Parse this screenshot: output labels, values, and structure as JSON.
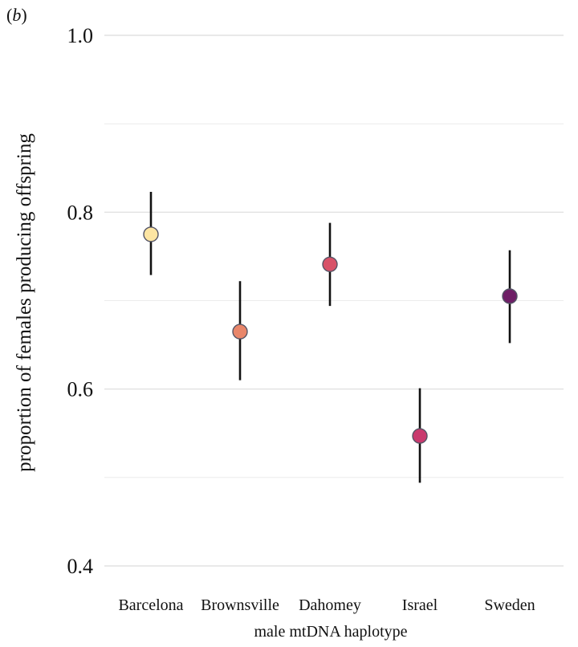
{
  "panel_label": "b",
  "chart_data": {
    "type": "scatter",
    "title": "",
    "xlabel": "male mtDNA haplotype",
    "ylabel": "proportion of females producing offspring",
    "ylim": [
      0.4,
      1.0
    ],
    "y_ticks": [
      "0.4",
      "0.6",
      "0.8",
      "1.0"
    ],
    "grid": true,
    "error_bars": true,
    "categories": [
      "Barcelona",
      "Brownsville",
      "Dahomey",
      "Israel",
      "Sweden"
    ],
    "values": [
      0.775,
      0.665,
      0.741,
      0.547,
      0.705
    ],
    "lower": [
      0.729,
      0.61,
      0.694,
      0.494,
      0.652
    ],
    "upper": [
      0.823,
      0.722,
      0.788,
      0.601,
      0.757
    ],
    "colors": [
      "#FDE5A3",
      "#E9866A",
      "#D85268",
      "#C93A6E",
      "#6E1E66"
    ]
  }
}
